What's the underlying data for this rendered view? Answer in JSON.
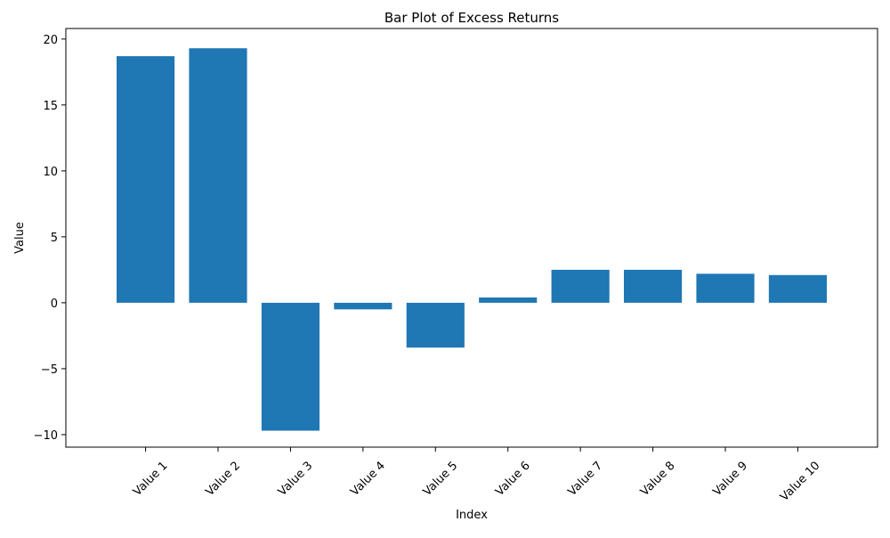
{
  "chart_data": {
    "type": "bar",
    "title": "Bar Plot of Excess Returns",
    "xlabel": "Index",
    "ylabel": "Value",
    "categories": [
      "Value 1",
      "Value 2",
      "Value 3",
      "Value 4",
      "Value 5",
      "Value 6",
      "Value 7",
      "Value 8",
      "Value 9",
      "Value 10"
    ],
    "values": [
      18.7,
      19.3,
      -9.7,
      -0.5,
      -3.4,
      0.4,
      2.5,
      2.5,
      2.2,
      2.1
    ],
    "ylim": [
      -10.95,
      20.8
    ],
    "yticks": [
      -10,
      -5,
      0,
      5,
      10,
      15,
      20
    ],
    "ytick_labels": [
      "−10",
      "−5",
      "0",
      "5",
      "10",
      "15",
      "20"
    ],
    "bar_color": "#1f77b4",
    "grid": false,
    "legend": null,
    "xtick_rotation": 45
  }
}
